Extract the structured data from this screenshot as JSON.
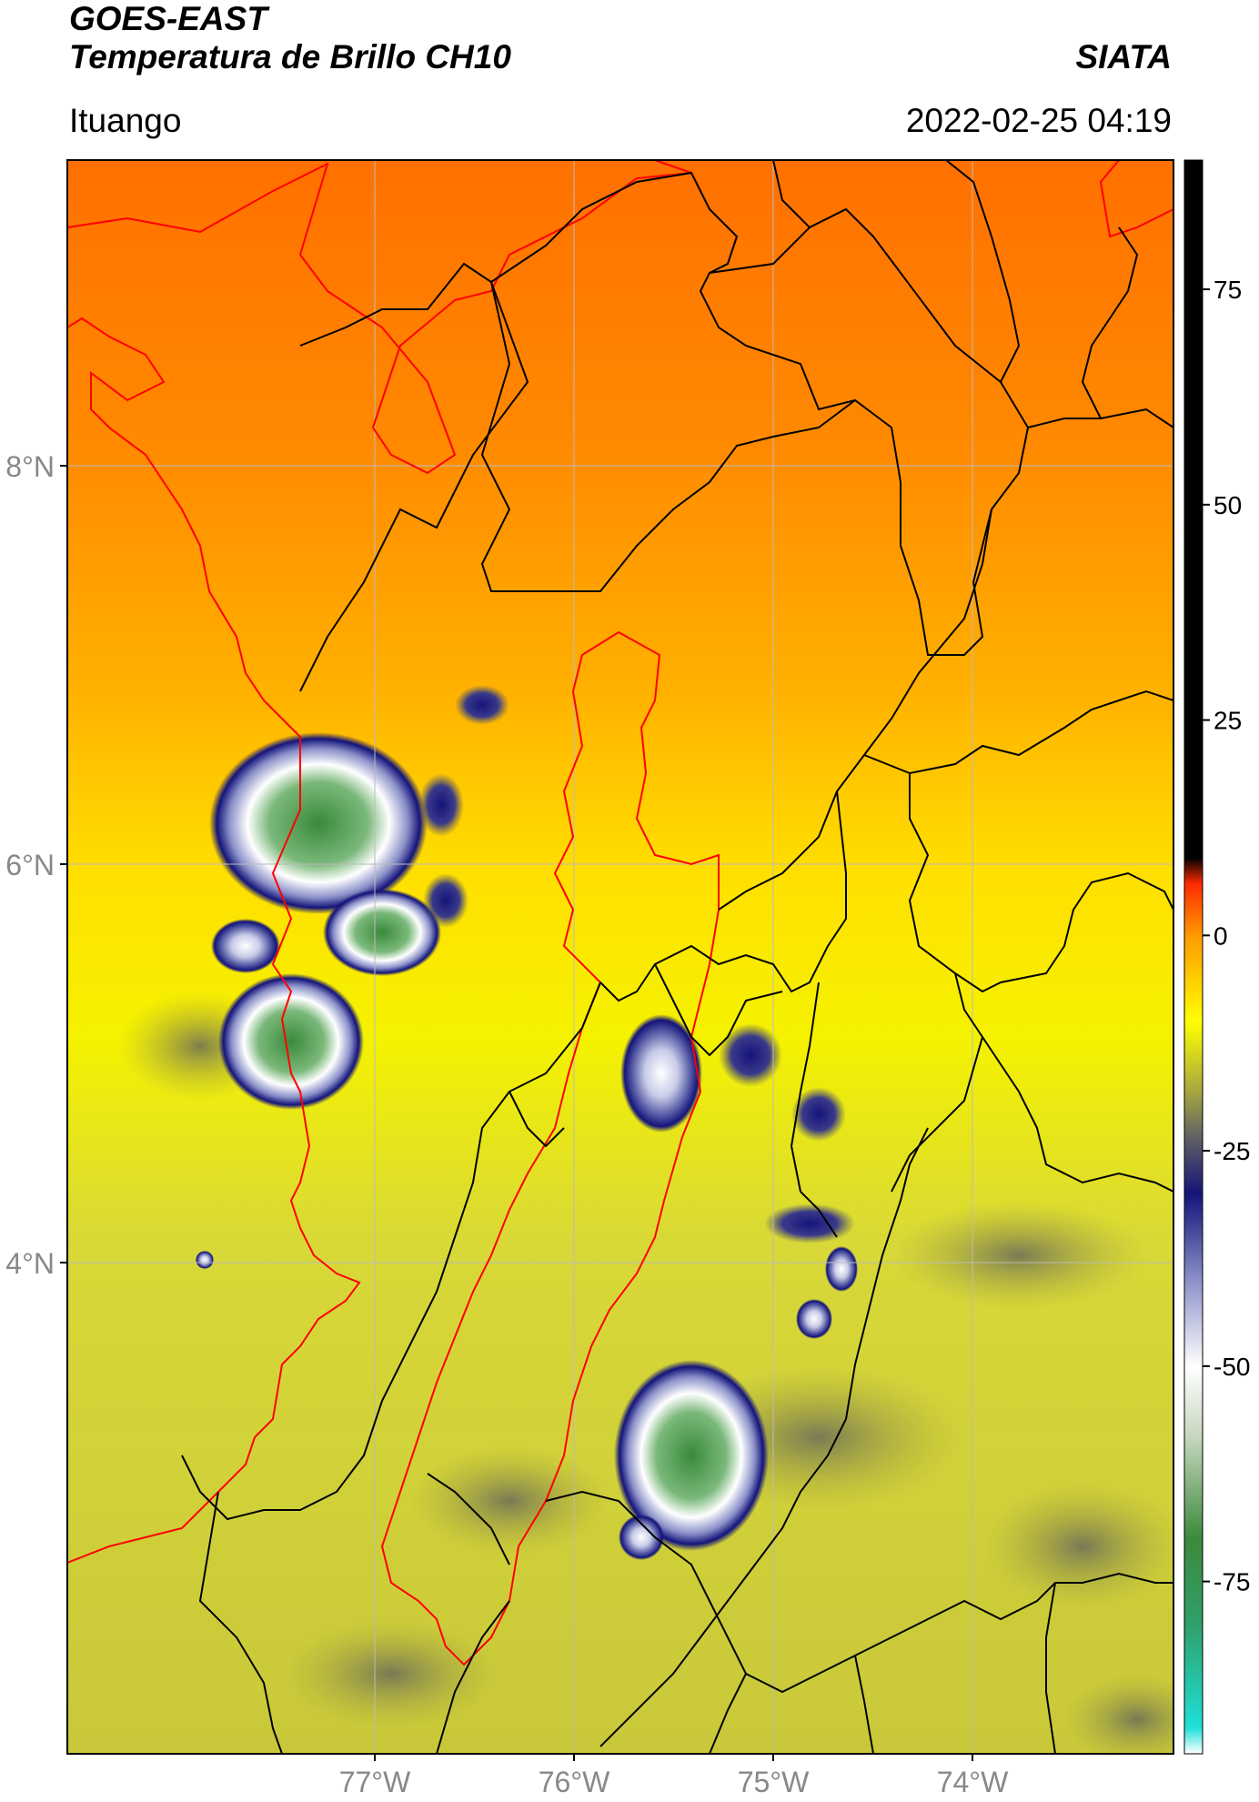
{
  "header": {
    "satellite": "GOES-EAST",
    "product": "Temperatura de Brillo CH10",
    "brand": "SIATA",
    "region": "Ituango",
    "datetime": "2022-02-25 04:19"
  },
  "axes": {
    "lat_labels": [
      "8°N",
      "6°N",
      "4°N"
    ],
    "lon_labels": [
      "77°W",
      "76°W",
      "75°W",
      "74°W"
    ]
  },
  "colorbar": {
    "tick_labels": [
      "75",
      "50",
      "25",
      "0",
      "-25",
      "-50",
      "-75"
    ],
    "stops": [
      {
        "value": -95,
        "color": "#ffffff"
      },
      {
        "value": -92,
        "color": "#1fe0d8"
      },
      {
        "value": -80,
        "color": "#2fa06a"
      },
      {
        "value": -70,
        "color": "#3c8a3c"
      },
      {
        "value": -58,
        "color": "#c8d8c0"
      },
      {
        "value": -50,
        "color": "#ffffff"
      },
      {
        "value": -40,
        "color": "#8a90c8"
      },
      {
        "value": -30,
        "color": "#14147a"
      },
      {
        "value": -24,
        "color": "#5a5a66"
      },
      {
        "value": -18,
        "color": "#a8a840"
      },
      {
        "value": -10,
        "color": "#ffff00"
      },
      {
        "value": 0,
        "color": "#ff9a00"
      },
      {
        "value": 6,
        "color": "#ff2a00"
      },
      {
        "value": 9,
        "color": "#000000"
      },
      {
        "value": 90,
        "color": "#000000"
      }
    ],
    "range": [
      -95,
      90
    ]
  },
  "map": {
    "colors": {
      "ocean_north": "#ff7a00",
      "land_mid": "#ffd000",
      "land_south": "#d4d43a",
      "cold_cloud": "#14147a",
      "cloud_white": "#ffffff",
      "cloud_green": "#3c8a3c",
      "basin_outline": "#ff0000",
      "borders": "#000000",
      "grid": "#bbbbbb"
    }
  }
}
